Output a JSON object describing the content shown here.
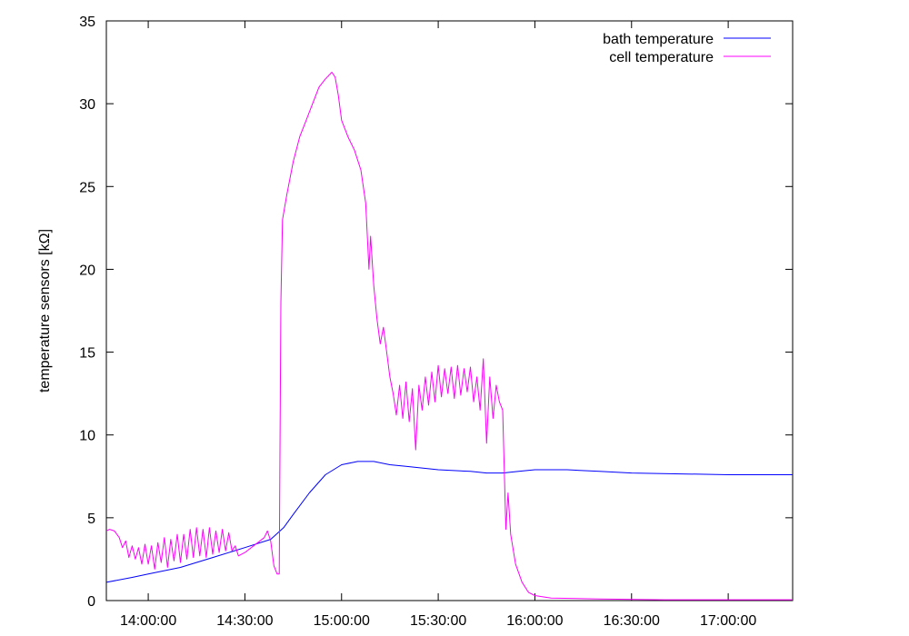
{
  "chart_data": {
    "type": "line",
    "title": "",
    "xlabel": "",
    "ylabel": "temperature sensors [kΩ]",
    "x_unit": "time of day",
    "xlim": [
      "13:47:00",
      "17:20:00"
    ],
    "ylim": [
      0,
      35
    ],
    "x_ticks": [
      "14:00:00",
      "14:30:00",
      "15:00:00",
      "15:30:00",
      "16:00:00",
      "16:30:00",
      "17:00:00"
    ],
    "y_ticks": [
      0,
      5,
      10,
      15,
      20,
      25,
      30,
      35
    ],
    "grid": false,
    "legend_position": "top-right",
    "series": [
      {
        "name": "bath temperature",
        "color": "#0000ff",
        "points": [
          [
            "13:47:00",
            1.1
          ],
          [
            "13:55:00",
            1.4
          ],
          [
            "14:00:00",
            1.6
          ],
          [
            "14:10:00",
            2.0
          ],
          [
            "14:20:00",
            2.6
          ],
          [
            "14:30:00",
            3.2
          ],
          [
            "14:38:00",
            3.7
          ],
          [
            "14:42:00",
            4.4
          ],
          [
            "14:45:00",
            5.2
          ],
          [
            "14:50:00",
            6.5
          ],
          [
            "14:55:00",
            7.6
          ],
          [
            "15:00:00",
            8.2
          ],
          [
            "15:05:00",
            8.4
          ],
          [
            "15:10:00",
            8.4
          ],
          [
            "15:15:00",
            8.2
          ],
          [
            "15:20:00",
            8.1
          ],
          [
            "15:30:00",
            7.9
          ],
          [
            "15:40:00",
            7.8
          ],
          [
            "15:45:00",
            7.7
          ],
          [
            "15:50:00",
            7.7
          ],
          [
            "15:55:00",
            7.8
          ],
          [
            "16:00:00",
            7.9
          ],
          [
            "16:10:00",
            7.9
          ],
          [
            "16:20:00",
            7.8
          ],
          [
            "16:30:00",
            7.7
          ],
          [
            "17:00:00",
            7.6
          ],
          [
            "17:20:00",
            7.6
          ]
        ]
      },
      {
        "name": "cell temperature",
        "color": "#ff00ff",
        "points": [
          [
            "13:47:00",
            4.2
          ],
          [
            "13:48:00",
            4.3
          ],
          [
            "13:49:30",
            4.2
          ],
          [
            "13:51:00",
            3.8
          ],
          [
            "13:52:00",
            3.2
          ],
          [
            "13:53:00",
            3.6
          ],
          [
            "13:54:00",
            2.6
          ],
          [
            "13:55:00",
            3.3
          ],
          [
            "13:56:00",
            2.5
          ],
          [
            "13:57:00",
            3.2
          ],
          [
            "13:58:00",
            2.2
          ],
          [
            "13:59:00",
            3.4
          ],
          [
            "14:00:00",
            2.2
          ],
          [
            "14:01:00",
            3.3
          ],
          [
            "14:02:00",
            1.9
          ],
          [
            "14:03:00",
            3.5
          ],
          [
            "14:04:00",
            2.3
          ],
          [
            "14:05:00",
            3.8
          ],
          [
            "14:06:00",
            2.0
          ],
          [
            "14:07:00",
            3.7
          ],
          [
            "14:08:00",
            2.4
          ],
          [
            "14:09:00",
            4.0
          ],
          [
            "14:10:00",
            2.3
          ],
          [
            "14:11:00",
            4.0
          ],
          [
            "14:12:00",
            2.5
          ],
          [
            "14:13:00",
            4.3
          ],
          [
            "14:14:00",
            2.6
          ],
          [
            "14:15:00",
            4.4
          ],
          [
            "14:16:00",
            2.7
          ],
          [
            "14:17:00",
            4.3
          ],
          [
            "14:18:00",
            2.6
          ],
          [
            "14:19:00",
            4.4
          ],
          [
            "14:20:00",
            2.8
          ],
          [
            "14:21:00",
            4.2
          ],
          [
            "14:22:00",
            2.9
          ],
          [
            "14:23:00",
            4.3
          ],
          [
            "14:24:00",
            3.0
          ],
          [
            "14:25:00",
            4.1
          ],
          [
            "14:26:00",
            3.0
          ],
          [
            "14:27:00",
            3.3
          ],
          [
            "14:28:00",
            2.7
          ],
          [
            "14:30:00",
            2.9
          ],
          [
            "14:32:00",
            3.2
          ],
          [
            "14:34:00",
            3.5
          ],
          [
            "14:36:00",
            3.8
          ],
          [
            "14:37:00",
            4.2
          ],
          [
            "14:38:00",
            3.6
          ],
          [
            "14:39:00",
            2.1
          ],
          [
            "14:40:00",
            1.6
          ],
          [
            "14:40:40",
            1.6
          ],
          [
            "14:41:10",
            18.0
          ],
          [
            "14:41:40",
            23.0
          ],
          [
            "14:43:00",
            24.5
          ],
          [
            "14:45:00",
            26.5
          ],
          [
            "14:47:00",
            28.0
          ],
          [
            "14:49:00",
            29.0
          ],
          [
            "14:51:00",
            30.0
          ],
          [
            "14:53:00",
            31.0
          ],
          [
            "14:55:00",
            31.5
          ],
          [
            "14:57:00",
            31.9
          ],
          [
            "14:58:00",
            31.6
          ],
          [
            "14:59:00",
            30.5
          ],
          [
            "15:00:00",
            29.0
          ],
          [
            "15:02:00",
            28.0
          ],
          [
            "15:04:00",
            27.2
          ],
          [
            "15:06:00",
            26.0
          ],
          [
            "15:07:30",
            24.0
          ],
          [
            "15:08:30",
            20.0
          ],
          [
            "15:09:00",
            22.0
          ],
          [
            "15:10:00",
            19.0
          ],
          [
            "15:11:00",
            17.0
          ],
          [
            "15:12:00",
            15.5
          ],
          [
            "15:13:00",
            16.5
          ],
          [
            "15:14:00",
            15.0
          ],
          [
            "15:15:00",
            13.5
          ],
          [
            "15:16:00",
            12.5
          ],
          [
            "15:17:00",
            11.2
          ],
          [
            "15:18:00",
            13.0
          ],
          [
            "15:19:00",
            11.0
          ],
          [
            "15:20:00",
            13.2
          ],
          [
            "15:21:00",
            10.8
          ],
          [
            "15:22:00",
            12.8
          ],
          [
            "15:23:00",
            9.1
          ],
          [
            "15:24:00",
            13.0
          ],
          [
            "15:25:00",
            11.5
          ],
          [
            "15:26:00",
            13.5
          ],
          [
            "15:27:00",
            11.8
          ],
          [
            "15:28:00",
            13.8
          ],
          [
            "15:29:00",
            12.0
          ],
          [
            "15:30:00",
            14.2
          ],
          [
            "15:31:00",
            12.3
          ],
          [
            "15:32:00",
            14.0
          ],
          [
            "15:33:00",
            12.5
          ],
          [
            "15:34:00",
            14.1
          ],
          [
            "15:35:00",
            12.2
          ],
          [
            "15:36:00",
            14.2
          ],
          [
            "15:37:00",
            12.4
          ],
          [
            "15:38:00",
            14.0
          ],
          [
            "15:39:00",
            12.6
          ],
          [
            "15:40:00",
            14.1
          ],
          [
            "15:41:00",
            12.0
          ],
          [
            "15:42:00",
            13.5
          ],
          [
            "15:43:00",
            11.5
          ],
          [
            "15:44:00",
            14.6
          ],
          [
            "15:45:00",
            9.5
          ],
          [
            "15:46:00",
            13.5
          ],
          [
            "15:47:00",
            11.0
          ],
          [
            "15:48:00",
            13.0
          ],
          [
            "15:49:00",
            12.0
          ],
          [
            "15:50:00",
            11.5
          ],
          [
            "15:51:00",
            4.3
          ],
          [
            "15:51:40",
            6.5
          ],
          [
            "15:52:30",
            4.0
          ],
          [
            "15:54:00",
            2.2
          ],
          [
            "15:56:00",
            1.1
          ],
          [
            "15:58:00",
            0.5
          ],
          [
            "16:00:00",
            0.3
          ],
          [
            "16:05:00",
            0.15
          ],
          [
            "16:20:00",
            0.1
          ],
          [
            "16:40:00",
            0.05
          ],
          [
            "17:20:00",
            0.05
          ]
        ]
      }
    ]
  }
}
